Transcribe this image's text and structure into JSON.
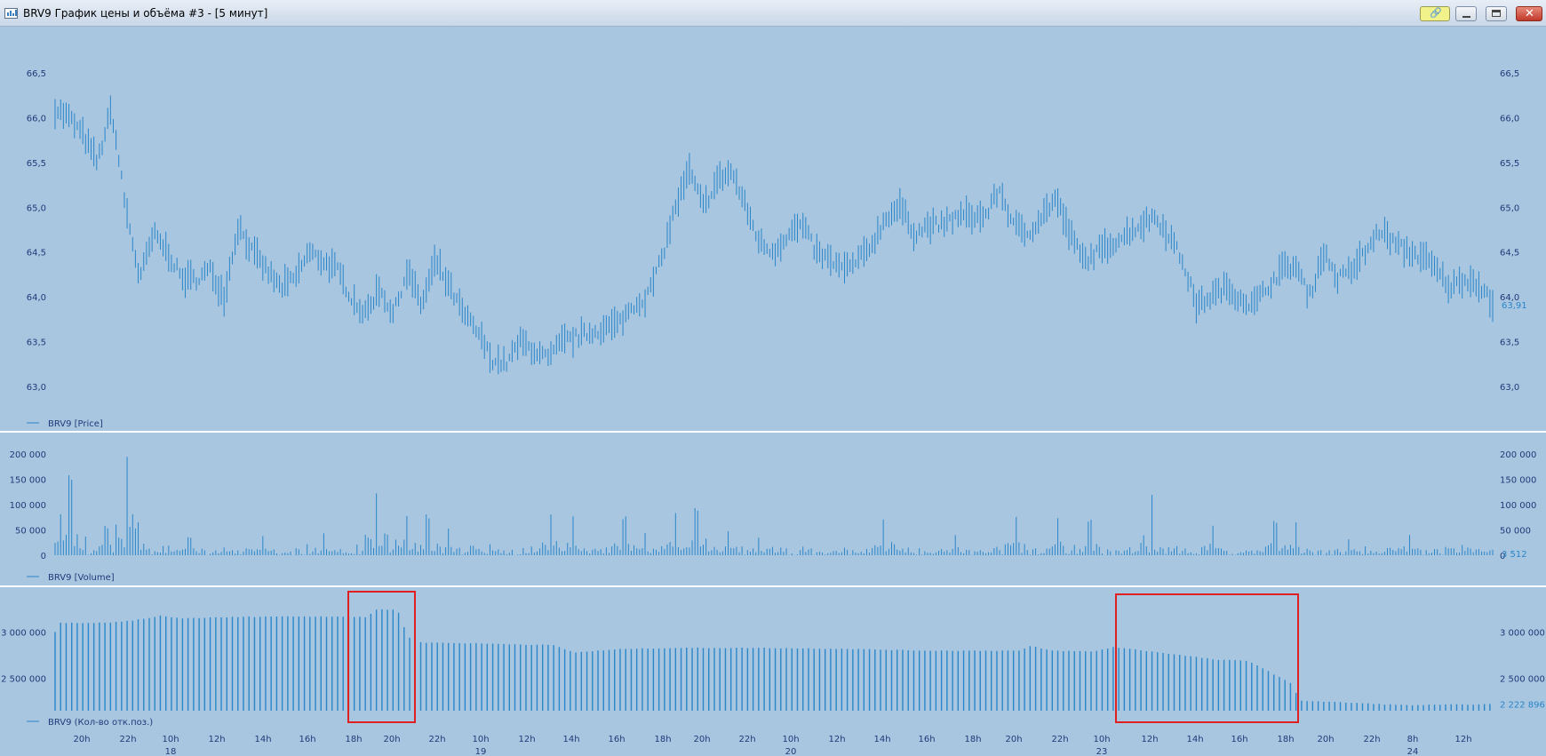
{
  "window": {
    "title": "BRV9 График цены и объёма #3 - [5 минут]",
    "icon": "chart-icon",
    "buttons": [
      "link-icon",
      "minimize-icon",
      "maximize-icon",
      "close-icon"
    ]
  },
  "colors": {
    "background": "#a9c6e1",
    "series": "#2a86c8",
    "axis_text": "#1f3a78",
    "highlight": "#e02020"
  },
  "x_axis": {
    "labels": [
      {
        "time": "20h",
        "day": ""
      },
      {
        "time": "22h",
        "day": ""
      },
      {
        "time": "10h",
        "day": "18"
      },
      {
        "time": "12h",
        "day": ""
      },
      {
        "time": "14h",
        "day": ""
      },
      {
        "time": "16h",
        "day": ""
      },
      {
        "time": "18h",
        "day": ""
      },
      {
        "time": "20h",
        "day": ""
      },
      {
        "time": "22h",
        "day": ""
      },
      {
        "time": "10h",
        "day": "19"
      },
      {
        "time": "12h",
        "day": ""
      },
      {
        "time": "14h",
        "day": ""
      },
      {
        "time": "16h",
        "day": ""
      },
      {
        "time": "18h",
        "day": ""
      },
      {
        "time": "20h",
        "day": ""
      },
      {
        "time": "22h",
        "day": ""
      },
      {
        "time": "10h",
        "day": "20"
      },
      {
        "time": "12h",
        "day": ""
      },
      {
        "time": "14h",
        "day": ""
      },
      {
        "time": "16h",
        "day": ""
      },
      {
        "time": "18h",
        "day": ""
      },
      {
        "time": "20h",
        "day": ""
      },
      {
        "time": "22h",
        "day": ""
      },
      {
        "time": "10h",
        "day": "23"
      },
      {
        "time": "12h",
        "day": ""
      },
      {
        "time": "14h",
        "day": ""
      },
      {
        "time": "16h",
        "day": ""
      },
      {
        "time": "18h",
        "day": ""
      },
      {
        "time": "20h",
        "day": ""
      },
      {
        "time": "22h",
        "day": ""
      },
      {
        "time": "8h",
        "day": "24"
      },
      {
        "time": "12h",
        "day": ""
      }
    ]
  },
  "chart_data": [
    {
      "type": "line",
      "name": "price",
      "legend": "BRV9 [Price]",
      "ylim": [
        62.9,
        66.6
      ],
      "yticks": [
        "66,5",
        "66,0",
        "65,5",
        "65,0",
        "64,5",
        "64,0",
        "63,5",
        "63,0"
      ],
      "ytick_values": [
        66.5,
        66.0,
        65.5,
        65.0,
        64.5,
        64.0,
        63.5,
        63.0
      ],
      "last_value_label": "63,91",
      "last_value": 63.91,
      "anchors": [
        [
          0,
          66.1
        ],
        [
          1,
          66.0
        ],
        [
          2,
          65.8
        ],
        [
          3,
          65.5
        ],
        [
          4,
          66.1
        ],
        [
          5,
          65.0
        ],
        [
          6,
          64.2
        ],
        [
          7,
          64.7
        ],
        [
          8,
          64.5
        ],
        [
          9,
          64.2
        ],
        [
          10,
          64.2
        ],
        [
          11,
          64.3
        ],
        [
          12,
          64.0
        ],
        [
          13,
          64.8
        ],
        [
          14,
          64.5
        ],
        [
          15,
          64.3
        ],
        [
          16,
          64.1
        ],
        [
          17,
          64.2
        ],
        [
          18,
          64.5
        ],
        [
          19,
          64.4
        ],
        [
          20,
          64.3
        ],
        [
          21,
          64.0
        ],
        [
          22,
          63.8
        ],
        [
          23,
          64.1
        ],
        [
          24,
          63.8
        ],
        [
          25,
          64.3
        ],
        [
          26,
          63.9
        ],
        [
          27,
          64.4
        ],
        [
          28,
          64.1
        ],
        [
          29,
          63.8
        ],
        [
          30,
          63.6
        ],
        [
          31,
          63.3
        ],
        [
          32,
          63.25
        ],
        [
          33,
          63.5
        ],
        [
          34,
          63.4
        ],
        [
          35,
          63.3
        ],
        [
          36,
          63.5
        ],
        [
          37,
          63.55
        ],
        [
          38,
          63.6
        ],
        [
          39,
          63.65
        ],
        [
          40,
          63.7
        ],
        [
          41,
          63.9
        ],
        [
          42,
          64.0
        ],
        [
          43,
          64.4
        ],
        [
          44,
          65.0
        ],
        [
          45,
          65.4
        ],
        [
          46,
          65.0
        ],
        [
          47,
          65.3
        ],
        [
          48,
          65.4
        ],
        [
          49,
          65.0
        ],
        [
          50,
          64.6
        ],
        [
          51,
          64.5
        ],
        [
          52,
          64.7
        ],
        [
          53,
          64.8
        ],
        [
          54,
          64.5
        ],
        [
          55,
          64.4
        ],
        [
          56,
          64.3
        ],
        [
          57,
          64.4
        ],
        [
          58,
          64.6
        ],
        [
          59,
          64.9
        ],
        [
          60,
          65.0
        ],
        [
          61,
          64.7
        ],
        [
          62,
          64.8
        ],
        [
          63,
          64.8
        ],
        [
          64,
          64.9
        ],
        [
          65,
          64.9
        ],
        [
          66,
          64.9
        ],
        [
          67,
          65.2
        ],
        [
          68,
          64.8
        ],
        [
          69,
          64.7
        ],
        [
          70,
          64.9
        ],
        [
          71,
          65.1
        ],
        [
          72,
          64.7
        ],
        [
          73,
          64.4
        ],
        [
          74,
          64.5
        ],
        [
          75,
          64.6
        ],
        [
          76,
          64.7
        ],
        [
          77,
          64.8
        ],
        [
          78,
          64.9
        ],
        [
          79,
          64.7
        ],
        [
          80,
          64.4
        ],
        [
          81,
          63.9
        ],
        [
          82,
          64.0
        ],
        [
          83,
          64.1
        ],
        [
          84,
          64.0
        ],
        [
          85,
          63.9
        ],
        [
          86,
          64.1
        ],
        [
          87,
          64.3
        ],
        [
          88,
          64.35
        ],
        [
          89,
          64.0
        ],
        [
          90,
          64.5
        ],
        [
          91,
          64.2
        ],
        [
          92,
          64.3
        ],
        [
          93,
          64.5
        ],
        [
          94,
          64.75
        ],
        [
          95,
          64.6
        ],
        [
          96,
          64.5
        ],
        [
          97,
          64.45
        ],
        [
          98,
          64.3
        ],
        [
          99,
          64.1
        ],
        [
          100,
          64.2
        ],
        [
          101,
          64.15
        ],
        [
          102,
          63.91
        ]
      ]
    },
    {
      "type": "bar",
      "name": "volume",
      "legend": "BRV9 [Volume]",
      "ylim": [
        0,
        205000
      ],
      "yticks": [
        "200 000",
        "150 000",
        "100 000",
        "50 000",
        "0"
      ],
      "ytick_values": [
        200000,
        150000,
        100000,
        50000,
        0
      ],
      "last_value_label": "3 512",
      "last_value": 3512,
      "typical_max": 22000,
      "spikes": [
        [
          0.5,
          85000
        ],
        [
          1.5,
          160000
        ],
        [
          3,
          40000
        ],
        [
          5,
          60000
        ],
        [
          7,
          200000
        ],
        [
          7.5,
          90000
        ],
        [
          8,
          70000
        ],
        [
          11,
          20000
        ],
        [
          13,
          40000
        ],
        [
          20,
          38000
        ],
        [
          26,
          45000
        ],
        [
          31,
          125000
        ],
        [
          34,
          90000
        ],
        [
          36,
          85000
        ],
        [
          38,
          55000
        ],
        [
          42,
          25000
        ],
        [
          48,
          85000
        ],
        [
          50,
          85000
        ],
        [
          55,
          80000
        ],
        [
          57,
          45000
        ],
        [
          60,
          85000
        ],
        [
          62,
          95000
        ],
        [
          65,
          50000
        ],
        [
          68,
          40000
        ],
        [
          80,
          75000
        ],
        [
          87,
          40000
        ],
        [
          93,
          85000
        ],
        [
          97,
          80000
        ],
        [
          100,
          75000
        ],
        [
          106,
          120000
        ],
        [
          112,
          65000
        ],
        [
          118,
          70000
        ],
        [
          120,
          68000
        ],
        [
          125,
          35000
        ],
        [
          131,
          40000
        ],
        [
          136,
          22000
        ]
      ]
    },
    {
      "type": "bar",
      "name": "open-interest",
      "legend": "BRV9 (Кол-во отк.поз.)",
      "ylim": [
        2150000,
        3400000
      ],
      "yticks": [
        "3 000 000",
        "2 500 000"
      ],
      "ytick_values": [
        3000000,
        2500000
      ],
      "last_value_label": "2 222 896",
      "last_value": 2222896,
      "anchors": [
        [
          0,
          3000000
        ],
        [
          0.3,
          3100000
        ],
        [
          5,
          3100000
        ],
        [
          7,
          3120000
        ],
        [
          9,
          3150000
        ],
        [
          10,
          3180000
        ],
        [
          12,
          3150000
        ],
        [
          20,
          3170000
        ],
        [
          28,
          3170000
        ],
        [
          30,
          3160000
        ],
        [
          31,
          3250000
        ],
        [
          33,
          3240000
        ],
        [
          33.8,
          3000000
        ],
        [
          34.5,
          2890000
        ],
        [
          40,
          2880000
        ],
        [
          48,
          2860000
        ],
        [
          50,
          2780000
        ],
        [
          55,
          2820000
        ],
        [
          60,
          2830000
        ],
        [
          68,
          2830000
        ],
        [
          76,
          2820000
        ],
        [
          84,
          2800000
        ],
        [
          93,
          2800000
        ],
        [
          94,
          2850000
        ],
        [
          96,
          2800000
        ],
        [
          100,
          2790000
        ],
        [
          102,
          2840000
        ],
        [
          105,
          2800000
        ],
        [
          110,
          2730000
        ],
        [
          112,
          2700000
        ],
        [
          115,
          2690000
        ],
        [
          117,
          2570000
        ],
        [
          119,
          2450000
        ],
        [
          120,
          2260000
        ],
        [
          124,
          2240000
        ],
        [
          130,
          2210000
        ],
        [
          138,
          2220000
        ],
        [
          138.5,
          2222896
        ]
      ]
    }
  ]
}
